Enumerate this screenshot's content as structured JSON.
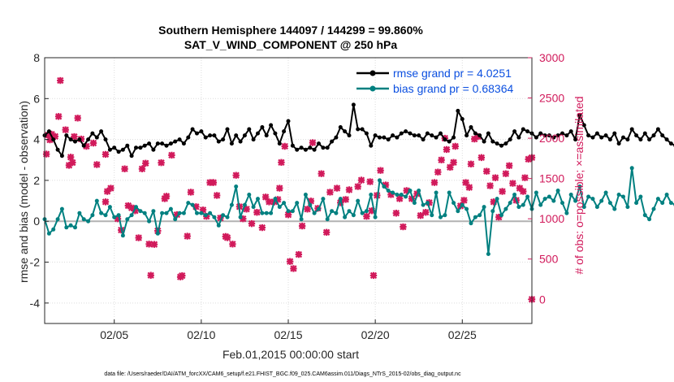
{
  "chart_data": {
    "type": "line",
    "title": "Southern Hemisphere 144097 / 144299 = 99.860%",
    "subtitle": "SAT_V_WIND_COMPONENT @ 250 hPa",
    "xlabel": "Feb.01,2015 00:00:00 start",
    "ylabel": "rmse and bias (model - observation)",
    "y2label": "# of obs: o=possible; ×=assimilated",
    "footnote": "data file: /Users/raeder/DAI/ATM_forcXX/CAM6_setup/f.e21.FHIST_BGC.f09_025.CAM6assim.011/Diags_NTrS_2015-02/obs_diag_output.nc",
    "xlim": [
      1,
      29
    ],
    "ylim": [
      -5,
      8
    ],
    "y2lim": [
      -300,
      3000
    ],
    "xticks": [
      5,
      10,
      15,
      20,
      25
    ],
    "xtick_labels": [
      "02/05",
      "02/10",
      "02/15",
      "02/20",
      "02/25"
    ],
    "yticks": [
      -4,
      -2,
      0,
      2,
      4,
      6,
      8
    ],
    "y2ticks": [
      0,
      500,
      1000,
      1500,
      2000,
      2500,
      3000
    ],
    "grid": true,
    "legend_position": "top-right",
    "colors": {
      "rmse": "#000000",
      "bias": "#008080",
      "obs": "#d11a5b",
      "zero": "#b2b2b2"
    },
    "series": [
      {
        "name": "rmse grand pr = 4.0251",
        "axis": "left",
        "x0": 1.0,
        "dx": 0.25,
        "values": [
          4.2,
          4.4,
          4.0,
          3.5,
          3.2,
          4.2,
          4.0,
          3.9,
          4.0,
          3.7,
          4.0,
          4.3,
          4.1,
          4.4,
          4.0,
          3.5,
          3.6,
          3.4,
          3.5,
          3.7,
          3.2,
          3.6,
          3.6,
          3.7,
          3.8,
          3.5,
          3.8,
          3.8,
          3.7,
          3.8,
          3.9,
          4.0,
          3.8,
          4.1,
          4.5,
          4.3,
          4.4,
          4.1,
          4.2,
          4.2,
          3.9,
          4.0,
          4.5,
          3.8,
          4.2,
          3.9,
          4.2,
          4.5,
          4.0,
          4.3,
          4.6,
          4.2,
          4.7,
          4.3,
          3.8,
          4.4,
          4.9,
          3.7,
          3.5,
          3.6,
          3.5,
          3.6,
          3.5,
          3.8,
          3.6,
          3.6,
          3.9,
          4.1,
          4.6,
          4.4,
          4.2,
          5.7,
          4.5,
          4.5,
          4.3,
          3.7,
          4.2,
          4.1,
          4.1,
          4.0,
          4.2,
          4.1,
          4.3,
          4.4,
          4.3,
          4.2,
          4.2,
          4.0,
          4.3,
          4.2,
          4.1,
          4.3,
          4.0,
          3.9,
          4.1,
          5.4,
          5.0,
          4.2,
          4.6,
          4.3,
          4.2,
          3.9,
          4.3,
          3.9,
          3.8,
          3.7,
          3.8,
          4.0,
          4.4,
          4.1,
          4.5,
          4.4,
          4.3,
          4.1,
          4.3,
          4.2,
          4.2,
          4.1,
          4.2,
          4.3,
          4.2,
          4.4,
          4.0,
          5.2,
          4.7,
          4.2,
          4.1,
          4.3,
          4.1,
          4.2,
          4.0,
          4.3,
          3.8,
          4.1,
          4.0,
          4.5,
          4.2,
          4.0,
          4.3,
          4.0,
          4.2,
          4.5,
          4.2,
          4.0,
          3.8,
          3.7,
          3.7,
          4.2,
          4.1,
          4.2,
          4.3,
          3.9,
          4.0,
          4.4,
          4.3,
          4.1,
          4.2,
          4.0,
          4.6,
          4.2,
          4.3,
          4.4,
          4.1,
          4.5,
          4.3,
          4.2,
          4.1,
          4.4,
          4.5,
          4.8,
          4.6,
          4.7,
          4.4
        ]
      },
      {
        "name": "bias grand pr = 0.68364",
        "axis": "left",
        "x0": 1.0,
        "dx": 0.25,
        "values": [
          0.1,
          -0.6,
          -0.4,
          0.1,
          0.6,
          -0.3,
          -0.2,
          -0.3,
          0.4,
          0.1,
          0.0,
          0.3,
          1.0,
          0.4,
          0.3,
          0.7,
          0.2,
          0.3,
          -0.7,
          0.1,
          0.3,
          0.7,
          0.5,
          0.4,
          0.0,
          0.5,
          -0.6,
          0.4,
          0.4,
          0.6,
          0.1,
          0.4,
          0.4,
          0.9,
          0.8,
          0.4,
          0.4,
          0.3,
          0.4,
          0.2,
          -0.2,
          0.3,
          0.2,
          0.8,
          1.7,
          0.2,
          0.8,
          1.3,
          0.7,
          1.1,
          0.4,
          0.4,
          0.4,
          1.1,
          0.7,
          0.9,
          0.5,
          0.5,
          0.9,
          0.1,
          1.3,
          0.8,
          0.4,
          0.6,
          1.1,
          0.1,
          0.5,
          0.4,
          1.1,
          0.2,
          0.5,
          0.3,
          1.0,
          0.4,
          0.5,
          1.3,
          0.2,
          2.0,
          1.7,
          1.5,
          1.4,
          1.3,
          1.3,
          1.2,
          1.5,
          0.9,
          1.5,
          0.8,
          0.9,
          0.3,
          1.4,
          0.2,
          0.3,
          1.4,
          0.9,
          0.5,
          0.8,
          0.6,
          -0.1,
          0.2,
          0.3,
          0.7,
          -1.6,
          0.5,
          1.1,
          0.3,
          0.6,
          0.9,
          1.3,
          0.7,
          0.8,
          1.2,
          0.6,
          1.4,
          0.8,
          1.1,
          1.2,
          1.0,
          1.5,
          0.9,
          0.4,
          1.3,
          1.0,
          1.7,
          0.7,
          1.2,
          1.1,
          0.7,
          1.0,
          1.4,
          0.9,
          0.6,
          1.3,
          1.2,
          0.7,
          2.6,
          0.9,
          1.2,
          0.3,
          0.1,
          0.6,
          1.1,
          0.9,
          1.3,
          0.9,
          0.8,
          0.4,
          1.3,
          0.4,
          -0.3,
          0.1,
          0.3,
          0.8,
          0.5,
          0.9,
          0.1,
          -0.5,
          1.5,
          -0.3,
          1.4,
          0.8,
          0.6,
          1.0,
          1.1,
          0.9,
          0.7,
          1.2,
          1.3,
          1.5,
          1.3,
          0.9,
          1.4,
          0.1,
          0.9,
          0.7,
          0.1,
          1.5,
          1.4,
          1.9,
          1.0,
          1.4,
          2.0,
          1.6
        ]
      },
      {
        "name": "obs assimilated",
        "axis": "right",
        "points": [
          [
            1.1,
            1803
          ],
          [
            1.2,
            2040
          ],
          [
            1.3,
            1980
          ],
          [
            1.4,
            2050
          ],
          [
            1.6,
            2023
          ],
          [
            1.8,
            2270
          ],
          [
            1.9,
            2717
          ],
          [
            2.2,
            2105
          ],
          [
            2.4,
            1664
          ],
          [
            2.5,
            1765
          ],
          [
            2.6,
            1698
          ],
          [
            2.7,
            2020
          ],
          [
            2.9,
            2250
          ],
          [
            3.1,
            1990
          ],
          [
            3.4,
            1900
          ],
          [
            3.8,
            1940
          ],
          [
            4.0,
            1673
          ],
          [
            4.5,
            1800
          ],
          [
            4.5,
            1210
          ],
          [
            4.6,
            1340
          ],
          [
            4.8,
            1380
          ],
          [
            5.2,
            1000
          ],
          [
            5.4,
            860
          ],
          [
            5.6,
            1620
          ],
          [
            5.8,
            1163
          ],
          [
            6.0,
            1136
          ],
          [
            6.2,
            1100
          ],
          [
            6.4,
            764
          ],
          [
            6.6,
            1620
          ],
          [
            6.8,
            1690
          ],
          [
            7.0,
            686
          ],
          [
            7.1,
            298
          ],
          [
            7.3,
            682
          ],
          [
            7.5,
            850
          ],
          [
            7.7,
            1696
          ],
          [
            7.9,
            1250
          ],
          [
            8.0,
            1280
          ],
          [
            8.3,
            1790
          ],
          [
            8.6,
            1051
          ],
          [
            8.8,
            278
          ],
          [
            8.9,
            294
          ],
          [
            9.2,
            784
          ],
          [
            9.4,
            1330
          ],
          [
            9.7,
            1150
          ],
          [
            10.1,
            1110
          ],
          [
            10.3,
            1030
          ],
          [
            10.5,
            1450
          ],
          [
            10.7,
            1450
          ],
          [
            10.9,
            1290
          ],
          [
            11.1,
            1010
          ],
          [
            11.4,
            780
          ],
          [
            11.5,
            765
          ],
          [
            11.8,
            686
          ],
          [
            12.0,
            1540
          ],
          [
            12.2,
            1150
          ],
          [
            12.4,
            1000
          ],
          [
            12.6,
            1120
          ],
          [
            12.9,
            940
          ],
          [
            13.2,
            1080
          ],
          [
            13.5,
            890
          ],
          [
            13.7,
            1270
          ],
          [
            13.9,
            1210
          ],
          [
            14.2,
            1210
          ],
          [
            14.4,
            1240
          ],
          [
            14.5,
            1380
          ],
          [
            14.6,
            1700
          ],
          [
            14.8,
            1900
          ],
          [
            15.0,
            1050
          ],
          [
            15.1,
            470
          ],
          [
            15.3,
            382
          ],
          [
            15.6,
            557
          ],
          [
            15.8,
            910
          ],
          [
            16.1,
            1120
          ],
          [
            16.3,
            1220
          ],
          [
            16.4,
            1945
          ],
          [
            16.7,
            1130
          ],
          [
            16.9,
            1560
          ],
          [
            17.2,
            832
          ],
          [
            17.4,
            1330
          ],
          [
            17.8,
            1380
          ],
          [
            18.0,
            1200
          ],
          [
            18.3,
            1240
          ],
          [
            18.5,
            1360
          ],
          [
            19.0,
            1400
          ],
          [
            19.2,
            1480
          ],
          [
            19.5,
            1030
          ],
          [
            19.7,
            1460
          ],
          [
            19.8,
            1100
          ],
          [
            19.9,
            296
          ],
          [
            20.1,
            1290
          ],
          [
            20.3,
            1600
          ],
          [
            20.6,
            1420
          ],
          [
            20.9,
            1300
          ],
          [
            21.2,
            1070
          ],
          [
            21.4,
            1250
          ],
          [
            21.6,
            900
          ],
          [
            21.8,
            1350
          ],
          [
            22.1,
            1250
          ],
          [
            22.4,
            1310
          ],
          [
            22.6,
            1040
          ],
          [
            22.9,
            1080
          ],
          [
            23.1,
            1200
          ],
          [
            23.4,
            1450
          ],
          [
            23.6,
            1580
          ],
          [
            23.8,
            1730
          ],
          [
            24.0,
            2000
          ],
          [
            24.1,
            1860
          ],
          [
            24.3,
            1640
          ],
          [
            24.5,
            1700
          ],
          [
            24.6,
            1900
          ],
          [
            24.9,
            1160
          ],
          [
            25.1,
            1230
          ],
          [
            25.2,
            1450
          ],
          [
            25.4,
            1390
          ],
          [
            25.5,
            1680
          ],
          [
            25.7,
            1990
          ],
          [
            25.9,
            2020
          ],
          [
            26.1,
            1760
          ],
          [
            26.4,
            1590
          ],
          [
            26.6,
            1410
          ],
          [
            26.8,
            1210
          ],
          [
            26.9,
            1510
          ],
          [
            27.1,
            1020
          ],
          [
            27.3,
            1340
          ],
          [
            27.5,
            1560
          ],
          [
            27.7,
            1660
          ],
          [
            27.9,
            1440
          ],
          [
            28.1,
            1230
          ],
          [
            28.3,
            1380
          ],
          [
            28.5,
            1340
          ],
          [
            28.6,
            1510
          ],
          [
            28.8,
            1740
          ],
          [
            29.0,
            1760
          ],
          [
            29.0,
            0
          ]
        ]
      }
    ]
  }
}
